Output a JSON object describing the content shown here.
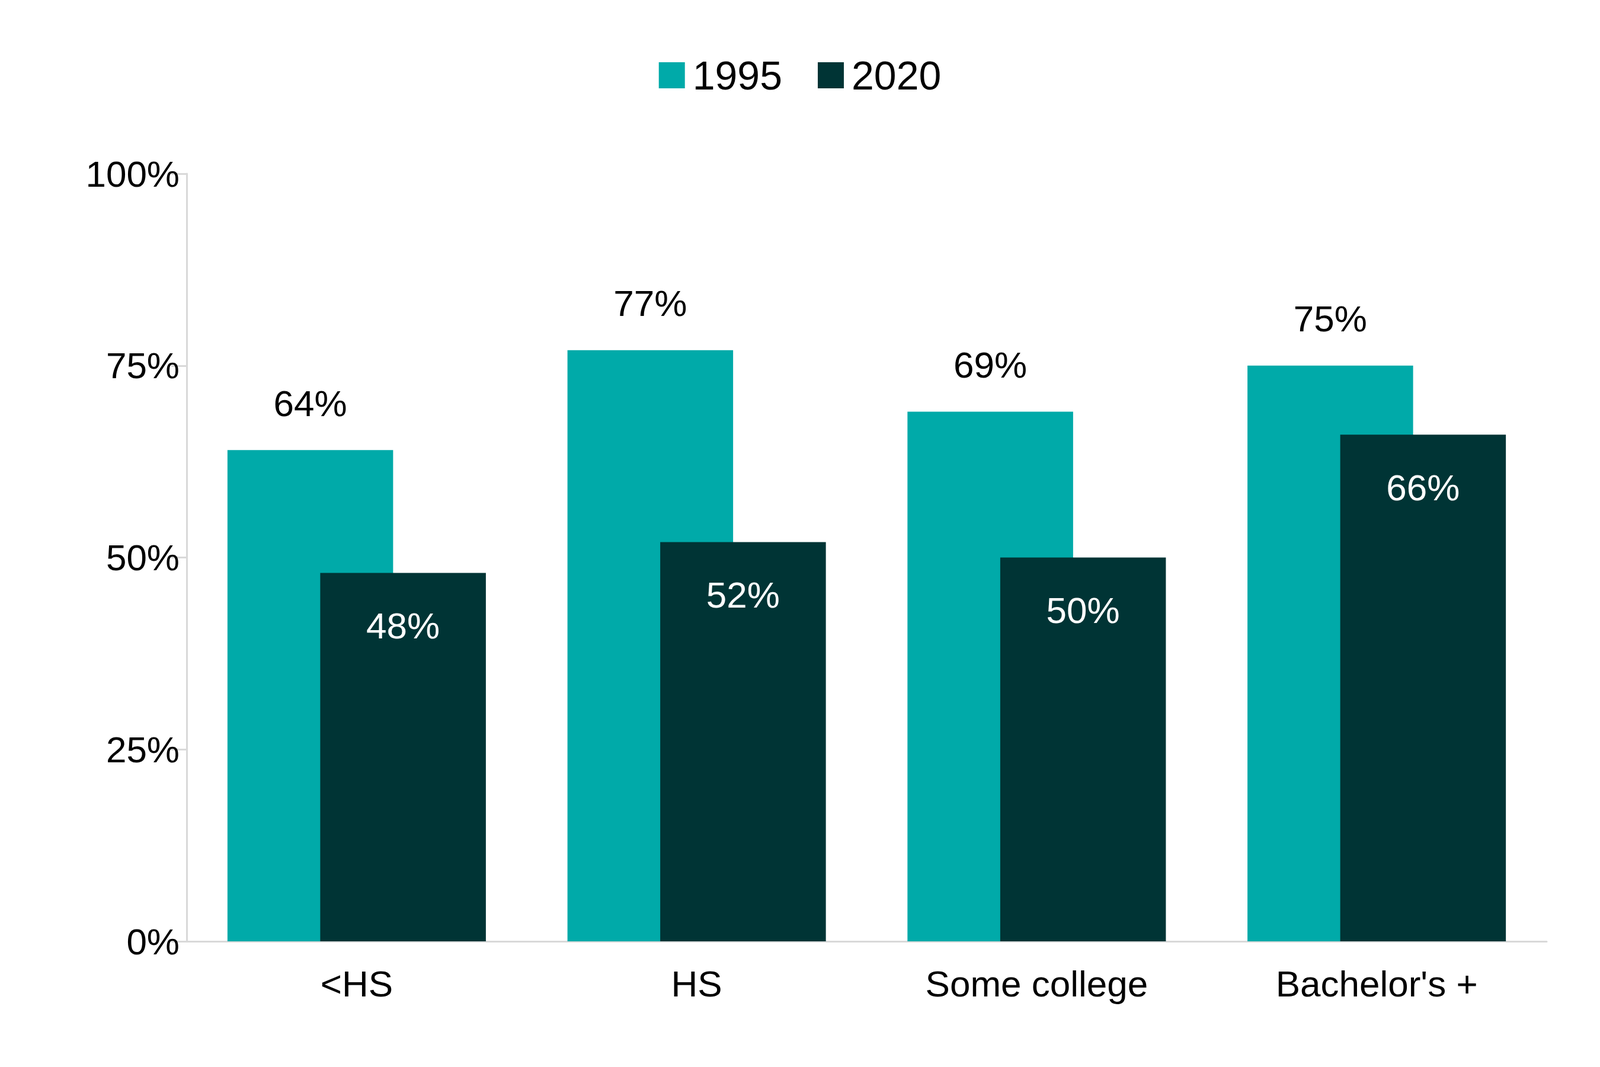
{
  "chart_data": {
    "type": "bar",
    "categories": [
      "<HS",
      "HS",
      "Some college",
      "Bachelor's +"
    ],
    "series": [
      {
        "name": "1995",
        "color": "#00aaa9",
        "values": [
          64,
          77,
          69,
          75
        ],
        "value_labels": [
          "64%",
          "77%",
          "69%",
          "75%"
        ]
      },
      {
        "name": "2020",
        "color": "#003435",
        "values": [
          48,
          52,
          50,
          66
        ],
        "value_labels": [
          "48%",
          "52%",
          "50%",
          "66%"
        ]
      }
    ],
    "ylim": [
      0,
      100
    ],
    "yticks": [
      {
        "value": 0,
        "label": "0%"
      },
      {
        "value": 25,
        "label": "25%"
      },
      {
        "value": 50,
        "label": "50%"
      },
      {
        "value": 75,
        "label": "75%"
      },
      {
        "value": 100,
        "label": "100%"
      }
    ],
    "grid": false,
    "legend": "top",
    "data_labels": true
  }
}
